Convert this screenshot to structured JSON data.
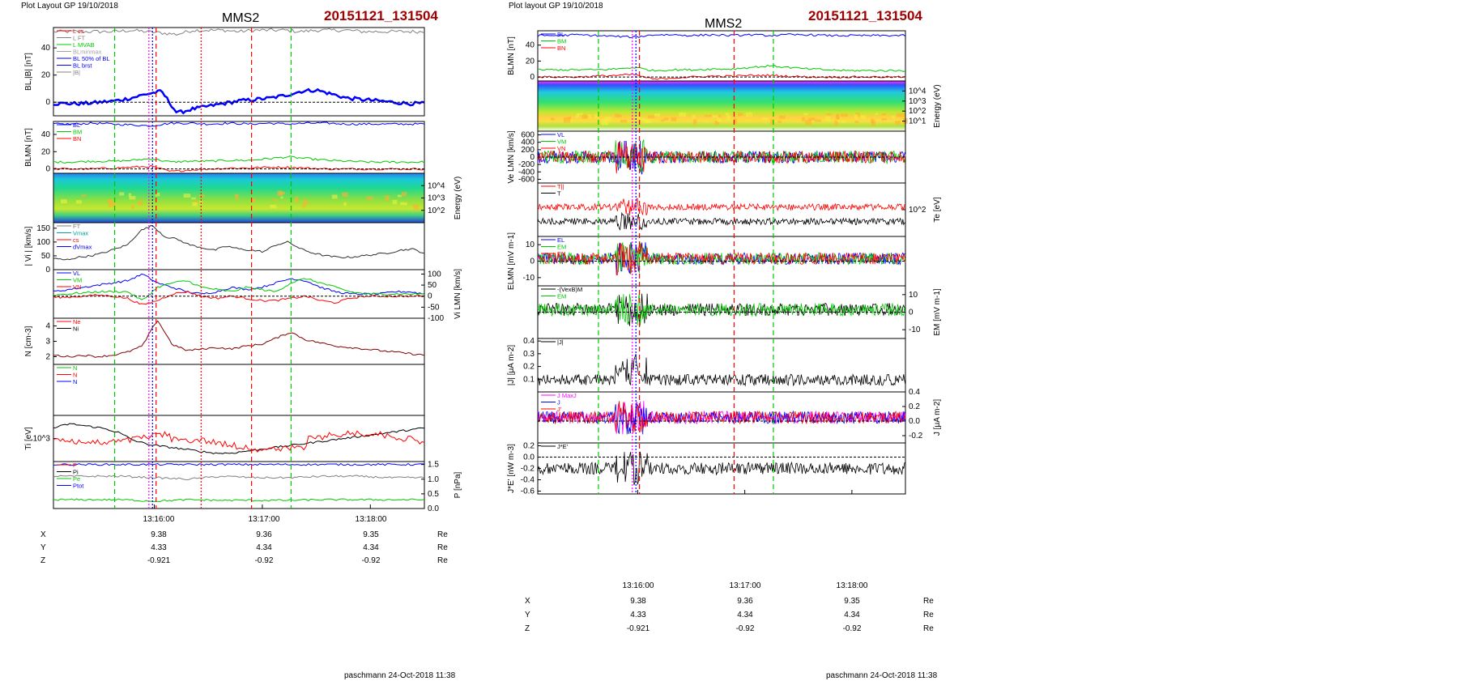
{
  "colors": {
    "red": "#ff0000",
    "green": "#00c800",
    "blue": "#0000ff",
    "black": "#000000",
    "gray": "#808080",
    "magenta": "#ff00ff",
    "title_red": "#a00000"
  },
  "pages": [
    {
      "header": "Plot Layout GP 19/10/2018",
      "spacecraft": "MMS2",
      "event": "20151121_131504",
      "footer": "paschmann 24-Oct-2018 11:38",
      "time_ticks": [
        "13:16:00",
        "13:17:00",
        "13:18:00"
      ],
      "ephemeris": [
        {
          "name": "X",
          "values": [
            "9.38",
            "9.36",
            "9.35"
          ],
          "unit": "Re"
        },
        {
          "name": "Y",
          "values": [
            "4.33",
            "4.34",
            "4.34"
          ],
          "unit": "Re"
        },
        {
          "name": "Z",
          "values": [
            "-0.921",
            "-0.92",
            "-0.92"
          ],
          "unit": "Re"
        }
      ]
    },
    {
      "header": "Plot layout GP 19/10/2018",
      "spacecraft": "MMS2",
      "event": "20151121_131504",
      "footer": "paschmann 24-Oct-2018 11:38",
      "time_ticks": [
        "13:16:00",
        "13:17:00",
        "13:18:00"
      ],
      "ephemeris": [
        {
          "name": "X",
          "values": [
            "9.38",
            "9.36",
            "9.35"
          ],
          "unit": "Re"
        },
        {
          "name": "Y",
          "values": [
            "4.33",
            "4.34",
            "4.34"
          ],
          "unit": "Re"
        },
        {
          "name": "Z",
          "values": [
            "-0.921",
            "-0.92",
            "-0.92"
          ],
          "unit": "Re"
        }
      ]
    }
  ],
  "chart_data": [
    {
      "type": "line",
      "title": "MMS2 20151121_131504",
      "x_ticks": [
        "13:16:00",
        "13:17:00",
        "13:18:00"
      ],
      "x_range": [
        "13:15:04",
        "13:18:30"
      ],
      "markers": [
        {
          "time": "13:15:38",
          "style": "green-dashed"
        },
        {
          "time": "13:15:57",
          "style": "magenta-dotted"
        },
        {
          "time": "13:15:59",
          "style": "blue-dotted"
        },
        {
          "time": "13:16:01",
          "style": "red-dashed"
        },
        {
          "time": "13:16:26",
          "style": "red-dotted"
        },
        {
          "time": "13:16:54",
          "style": "red-dashed"
        },
        {
          "time": "13:17:16",
          "style": "green-dashed"
        }
      ],
      "panels": [
        {
          "ylabel": "BL,|B| [nT]",
          "ylim": [
            -10,
            55
          ],
          "yticks": [
            "0",
            "20",
            "40"
          ],
          "legend": [
            "L cs",
            "L FT",
            "L MVAB",
            "BLminmax",
            "BL 50% of BL",
            "BL brst",
            "|B|"
          ],
          "series": [
            {
              "name": "|B|",
              "values": [
                52,
                52,
                52,
                52,
                52,
                53,
                52,
                51,
                50,
                53,
                53,
                53,
                52,
                53,
                53,
                53,
                52,
                53,
                53,
                53,
                52,
                52,
                52,
                52,
                52
              ]
            },
            {
              "name": "BL brst",
              "values": [
                -1,
                -1,
                -1,
                0,
                1,
                3,
                6,
                8,
                -8,
                -5,
                -3,
                -1,
                1,
                2,
                3,
                5,
                8,
                9,
                6,
                3,
                2,
                1,
                0,
                -1,
                -1
              ]
            }
          ]
        },
        {
          "ylabel": "BLMN [nT]",
          "ylim": [
            -5,
            55
          ],
          "yticks": [
            "0",
            "20",
            "40"
          ],
          "legend": [
            "BL",
            "BM",
            "BN"
          ],
          "series": [
            {
              "name": "BL",
              "values": [
                52,
                52,
                53,
                52,
                51,
                50,
                53,
                53,
                52,
                53,
                52,
                53,
                52,
                53,
                53,
                52,
                52,
                52,
                52,
                52
              ]
            },
            {
              "name": "BM",
              "values": [
                8,
                8,
                9,
                9,
                10,
                12,
                8,
                9,
                9,
                10,
                10,
                12,
                14,
                12,
                10,
                9,
                8,
                8,
                8,
                8
              ]
            },
            {
              "name": "BN",
              "values": [
                0,
                0,
                0,
                1,
                2,
                3,
                -3,
                -1,
                0,
                1,
                1,
                2,
                2,
                1,
                0,
                0,
                0,
                0,
                0,
                0
              ]
            }
          ]
        },
        {
          "ylabel": "Energy (eV)",
          "type": "spectrogram",
          "yticks": [
            "10^4",
            "10^3",
            "10^2"
          ]
        },
        {
          "ylabel": "| Vi | [km/s]",
          "ylim": [
            0,
            170
          ],
          "yticks": [
            "0",
            "50",
            "100",
            "150"
          ],
          "legend": [
            "FT",
            "Vmax",
            "cs",
            "dVmax"
          ],
          "series": [
            {
              "name": "|Vi|",
              "values": [
                40,
                35,
                45,
                50,
                60,
                75,
                90,
                140,
                160,
                120,
                110,
                90,
                80,
                70,
                85,
                75,
                70,
                65,
                90,
                100,
                75,
                60,
                50,
                45,
                45,
                50,
                55,
                60,
                70,
                75,
                60
              ]
            }
          ]
        },
        {
          "ylabel": "Vi LMN [km/s]",
          "ylim": [
            -100,
            120
          ],
          "yticks": [
            "100",
            "50",
            "0",
            "-50",
            "-100"
          ],
          "legend": [
            "VL",
            "VM",
            "VN"
          ],
          "series": [
            {
              "name": "VL",
              "values": [
                20,
                30,
                40,
                50,
                60,
                70,
                100,
                60,
                40,
                20,
                10,
                20,
                40,
                30,
                40,
                60,
                80,
                70,
                40,
                20,
                10,
                10,
                10,
                20,
                20,
                10
              ]
            },
            {
              "name": "VM",
              "values": [
                5,
                10,
                15,
                20,
                20,
                20,
                -20,
                40,
                60,
                70,
                40,
                30,
                20,
                40,
                30,
                20,
                60,
                80,
                60,
                40,
                20,
                10,
                10,
                10,
                10,
                10
              ]
            },
            {
              "name": "VN",
              "values": [
                -5,
                -5,
                0,
                5,
                0,
                -10,
                -40,
                -20,
                10,
                20,
                0,
                -10,
                0,
                -10,
                -20,
                -20,
                -10,
                0,
                -20,
                -30,
                -10,
                0,
                0,
                0,
                0,
                0
              ]
            }
          ]
        },
        {
          "ylabel": "N [cm-3]",
          "ylim": [
            1.5,
            4.5
          ],
          "yticks": [
            "2",
            "3",
            "4"
          ],
          "legend": [
            "Ne",
            "Ni"
          ],
          "series": [
            {
              "name": "Ni",
              "values": [
                2.1,
                2.0,
                2.1,
                2.0,
                2.1,
                2.3,
                2.7,
                4.4,
                2.8,
                2.4,
                2.5,
                2.6,
                2.5,
                2.7,
                2.8,
                3.2,
                3.6,
                3.1,
                2.9,
                2.7,
                2.6,
                2.5,
                2.4,
                2.3,
                2.2,
                2.1
              ]
            }
          ]
        },
        {
          "ylabel": "",
          "type": "empty",
          "legend": [
            "N",
            "N",
            "N"
          ]
        },
        {
          "ylabel": "Ti [eV]",
          "yticks": [
            "10^3"
          ],
          "series": [
            {
              "name": "Ti",
              "values": [
                1300,
                1400,
                1350,
                1300,
                1200,
                1000,
                900,
                850,
                800,
                750,
                700,
                700,
                750,
                800,
                850,
                900,
                950,
                1000,
                1050,
                1100,
                1150,
                1200,
                1250,
                1300
              ]
            }
          ]
        },
        {
          "ylabel": "P [nPa]",
          "ylim": [
            0,
            1.6
          ],
          "yticks": [
            "0.0",
            "0.5",
            "1.0",
            "1.5"
          ],
          "legend": [
            "P",
            "Pi",
            "Pe",
            "Ptot"
          ],
          "series": [
            {
              "name": "Ptot",
              "values": [
                1.5,
                1.5,
                1.5,
                1.5,
                1.5,
                1.5,
                1.5,
                1.5,
                1.5,
                1.5,
                1.5,
                1.5
              ]
            },
            {
              "name": "Pi",
              "values": [
                1.1,
                1.1,
                1.1,
                1.05,
                1.0,
                1.1,
                1.05,
                1.05,
                1.1,
                1.1,
                1.05,
                1.05
              ]
            },
            {
              "name": "Pe",
              "values": [
                0.3,
                0.3,
                0.3,
                0.25,
                0.3,
                0.28,
                0.28,
                0.28,
                0.3,
                0.3,
                0.3,
                0.3
              ]
            }
          ]
        }
      ]
    },
    {
      "type": "line",
      "title": "MMS2 20151121_131504",
      "x_ticks": [
        "13:16:00",
        "13:17:00",
        "13:18:00"
      ],
      "x_range": [
        "13:15:04",
        "13:18:30"
      ],
      "markers": [
        {
          "time": "13:15:38",
          "style": "green-dashed"
        },
        {
          "time": "13:15:57",
          "style": "magenta-dotted"
        },
        {
          "time": "13:15:59",
          "style": "blue-dotted"
        },
        {
          "time": "13:16:01",
          "style": "red-dashed"
        },
        {
          "time": "13:16:54",
          "style": "red-dashed"
        },
        {
          "time": "13:17:16",
          "style": "green-dashed"
        }
      ],
      "panels": [
        {
          "ylabel": "BLMN [nT]",
          "ylim": [
            -5,
            58
          ],
          "yticks": [
            "0",
            "20",
            "40"
          ],
          "legend": [
            "BL",
            "BM",
            "BN"
          ],
          "series": [
            {
              "name": "BL",
              "values": [
                52,
                52,
                53,
                52,
                51,
                50,
                53,
                53,
                52,
                53,
                52,
                53,
                52,
                53,
                53,
                52,
                52,
                52,
                52,
                52
              ]
            },
            {
              "name": "BM",
              "values": [
                9,
                9,
                9,
                9,
                10,
                12,
                8,
                9,
                9,
                10,
                10,
                12,
                14,
                12,
                10,
                9,
                8,
                8,
                8,
                8
              ]
            },
            {
              "name": "BN",
              "values": [
                0,
                0,
                0,
                1,
                2,
                3,
                -3,
                -1,
                0,
                1,
                1,
                2,
                2,
                1,
                0,
                0,
                0,
                0,
                0,
                0
              ]
            }
          ]
        },
        {
          "ylabel": "Energy (eV)",
          "type": "spectrogram",
          "yticks": [
            "10^4",
            "10^3",
            "10^2",
            "10^1"
          ]
        },
        {
          "ylabel": "Ve LMN [km/s]",
          "ylim": [
            -700,
            700
          ],
          "yticks": [
            "600",
            "400",
            "200",
            "0",
            "-200",
            "-400",
            "-600"
          ],
          "legend": [
            "VL",
            "VM",
            "VN"
          ],
          "type": "noise"
        },
        {
          "ylabel": "Te [eV]",
          "yticks": [
            "10^2"
          ],
          "legend": [
            "T||",
            "T"
          ],
          "type": "noise"
        },
        {
          "ylabel": "ELMN [mV m-1]",
          "ylim": [
            -15,
            15
          ],
          "yticks": [
            "10",
            "0",
            "-10"
          ],
          "legend": [
            "EL",
            "EM",
            "EN"
          ],
          "type": "noise"
        },
        {
          "ylabel": "EM [mV m-1]",
          "ylim": [
            -15,
            15
          ],
          "yticks": [
            "10",
            "0",
            "-10"
          ],
          "legend": [
            "-(VexB)M",
            "EM"
          ],
          "type": "noise"
        },
        {
          "ylabel": "|J| [μA m-2]",
          "ylim": [
            0,
            0.42
          ],
          "yticks": [
            "0.4",
            "0.3",
            "0.2",
            "0.1"
          ],
          "legend": [
            "|J|"
          ],
          "type": "noise"
        },
        {
          "ylabel": "J [μA m-2]",
          "ylim": [
            -0.3,
            0.4
          ],
          "yticks": [
            "0.4",
            "0.2",
            "0.0",
            "-0.2"
          ],
          "legend": [
            "J MaxJ",
            "J",
            "J'"
          ],
          "type": "noise"
        },
        {
          "ylabel": "J*E' [nW m-3]",
          "ylim": [
            -0.65,
            0.25
          ],
          "yticks": [
            "0.2",
            "0.0",
            "-0.2",
            "-0.4",
            "-0.6"
          ],
          "legend": [
            "J*E'"
          ],
          "type": "noise"
        }
      ]
    }
  ]
}
